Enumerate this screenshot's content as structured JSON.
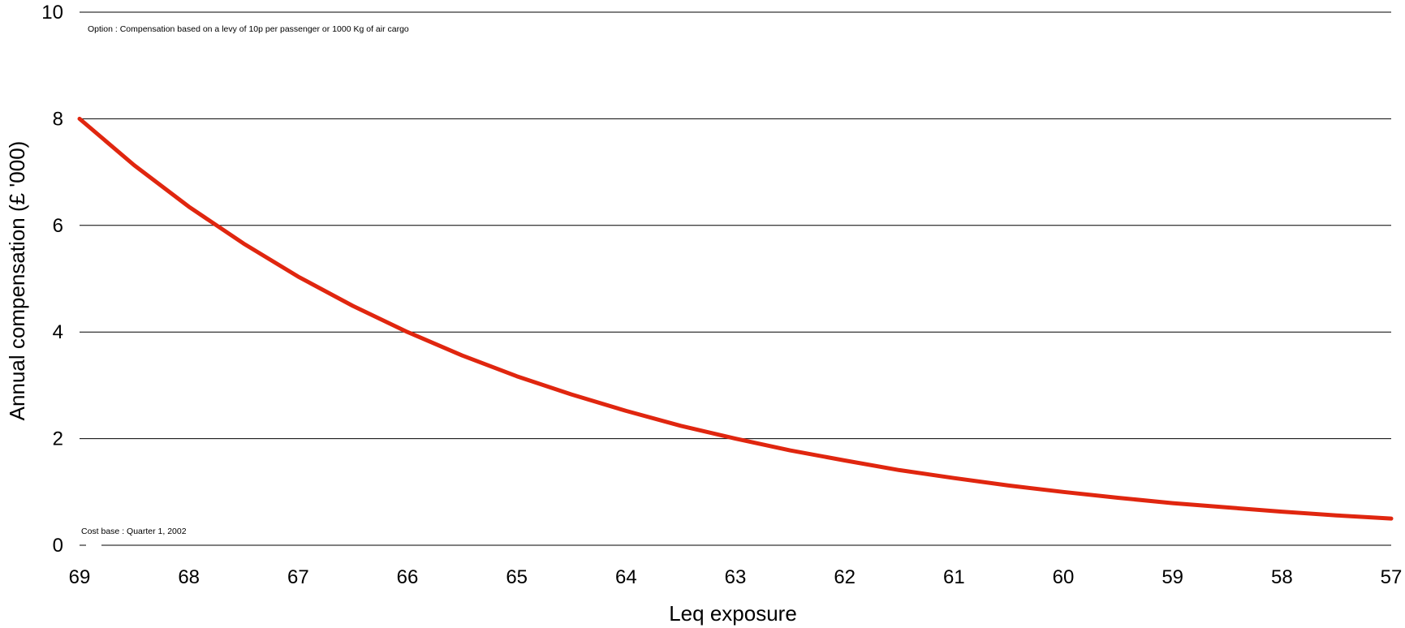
{
  "chart_data": {
    "type": "line",
    "title": "",
    "xlabel": "Leq exposure",
    "ylabel": "Annual compensation (£ '000)",
    "xlim": [
      69,
      57
    ],
    "ylim": [
      0,
      10
    ],
    "x_ticks": [
      "69",
      "68",
      "67",
      "66",
      "65",
      "64",
      "63",
      "62",
      "61",
      "60",
      "59",
      "58",
      "57"
    ],
    "y_ticks": [
      "0",
      "2",
      "4",
      "6",
      "8",
      "10"
    ],
    "grid": true,
    "annotations": {
      "option": "Option : Compensation  based on a levy of 10p per passenger or 1000 Kg of air cargo",
      "cost_base": "Cost base :  Quarter 1, 2002"
    },
    "series": [
      {
        "color": "#e0260f",
        "x": [
          69,
          68.5,
          68,
          67.5,
          67,
          66.5,
          66,
          65.5,
          65,
          64.5,
          64,
          63.5,
          63,
          62.5,
          62,
          61.5,
          61,
          60.5,
          60,
          59.5,
          59,
          58.5,
          58,
          57.5,
          57
        ],
        "y": [
          8.0,
          7.13,
          6.35,
          5.66,
          5.04,
          4.49,
          4.0,
          3.56,
          3.17,
          2.83,
          2.52,
          2.24,
          2.0,
          1.78,
          1.59,
          1.41,
          1.26,
          1.12,
          1.0,
          0.89,
          0.79,
          0.71,
          0.63,
          0.56,
          0.5
        ]
      }
    ]
  }
}
